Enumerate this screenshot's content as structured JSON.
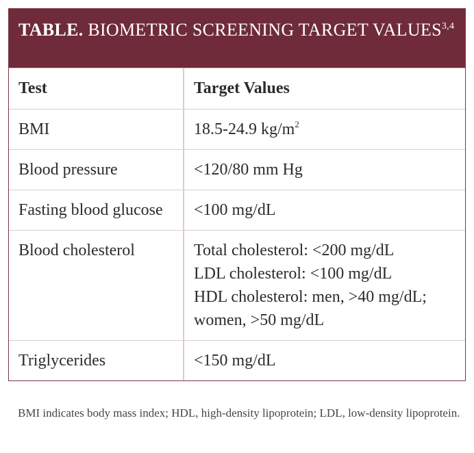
{
  "table": {
    "label": "TABLE.",
    "title": "BIOMETRIC SCREENING TARGET VALUES",
    "title_refs": "3,4",
    "header": [
      "Test",
      "Target Values"
    ],
    "rows": [
      {
        "test": "BMI",
        "value": [
          "18.5-24.9 kg/m"
        ],
        "value_sup": "2"
      },
      {
        "test": "Blood pressure",
        "value": [
          "<120/80 mm Hg"
        ]
      },
      {
        "test": "Fasting blood glucose",
        "value": [
          "<100 mg/dL"
        ]
      },
      {
        "test": "Blood cholesterol",
        "value": [
          "Total cholesterol: <200 mg/dL",
          "LDL cholesterol: <100 mg/dL",
          "HDL cholesterol: men, >40 mg/dL; women, >50 mg/dL"
        ]
      },
      {
        "test": "Triglycerides",
        "value": [
          "<150 mg/dL"
        ]
      }
    ],
    "footnote": "BMI indicates body mass index; HDL, high-density lipoprotein; LDL, low-density lipoprotein."
  }
}
